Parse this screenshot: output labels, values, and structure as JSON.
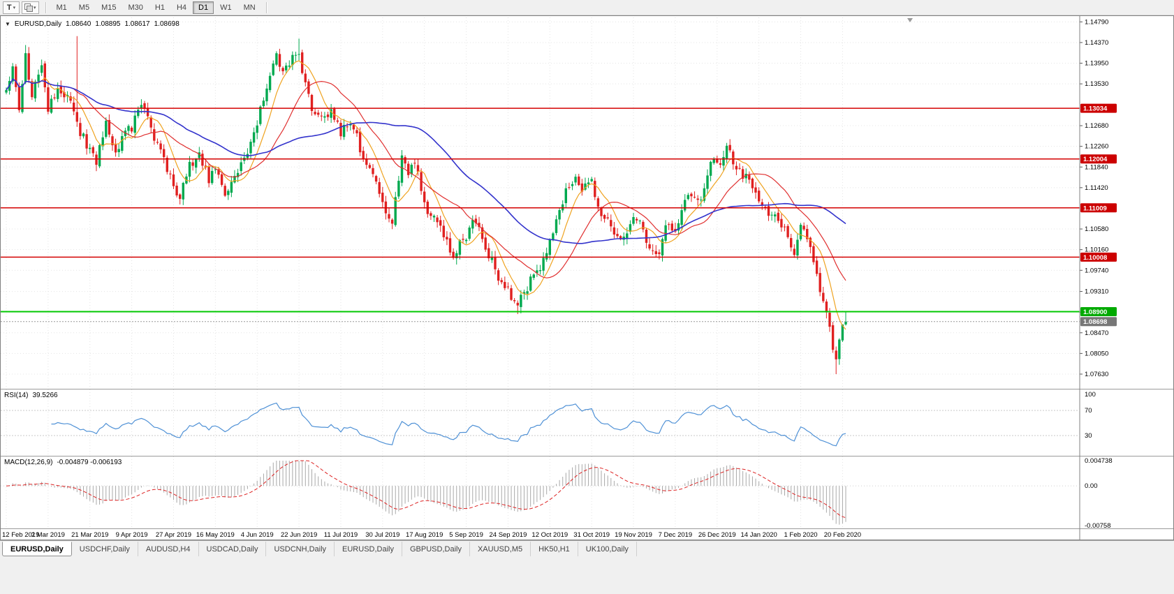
{
  "toolbar": {
    "tools_button_label": "T",
    "dropdown_glyph": "▾",
    "timeframes": [
      "M1",
      "M5",
      "M15",
      "M30",
      "H1",
      "H4",
      "D1",
      "W1",
      "MN"
    ],
    "active_timeframe": "D1"
  },
  "chart_header": {
    "collapse_glyph": "▼",
    "symbol_timeframe": "EURUSD,Daily",
    "open": "1.08640",
    "high": "1.08895",
    "low": "1.08617",
    "close": "1.08698"
  },
  "tabs": {
    "items": [
      "EURUSD,Daily",
      "USDCHF,Daily",
      "AUDUSD,H4",
      "USDCAD,Daily",
      "USDCNH,Daily",
      "EURUSD,Daily",
      "GBPUSD,Daily",
      "XAUUSD,M5",
      "HK50,H1",
      "UK100,Daily"
    ],
    "active_index": 0
  },
  "chart_data": {
    "type": "candlestick",
    "symbol": "EURUSD",
    "timeframe": "Daily",
    "last_candle": {
      "open": "1.08640",
      "high": "1.08895",
      "low": "1.08617",
      "close": "1.08698"
    },
    "num_candles": 262,
    "label_every": 13,
    "x_labels": [
      "12 Feb 2019",
      "2 Mar 2019",
      "21 Mar 2019",
      "9 Apr 2019",
      "27 Apr 2019",
      "16 May 2019",
      "4 Jun 2019",
      "22 Jun 2019",
      "11 Jul 2019",
      "30 Jul 2019",
      "17 Aug 2019",
      "5 Sep 2019",
      "24 Sep 2019",
      "12 Oct 2019",
      "31 Oct 2019",
      "19 Nov 2019",
      "7 Dec 2019",
      "26 Dec 2019",
      "14 Jan 2020",
      "1 Feb 2020",
      "20 Feb 2020"
    ],
    "y_axis": {
      "min": 1.0736,
      "max": 1.1488,
      "ticks": [
        "1.14790",
        "1.14370",
        "1.13950",
        "1.13530",
        "1.12680",
        "1.12260",
        "1.11840",
        "1.11420",
        "1.10580",
        "1.10160",
        "1.09740",
        "1.09310",
        "1.08890",
        "1.08470",
        "1.08050",
        "1.07630"
      ]
    },
    "close_path": [
      [
        0,
        1.1335
      ],
      [
        2,
        1.1385
      ],
      [
        4,
        1.13
      ],
      [
        6,
        1.1405
      ],
      [
        8,
        1.133
      ],
      [
        11,
        1.139
      ],
      [
        13,
        1.13
      ],
      [
        16,
        1.1345
      ],
      [
        19,
        1.132
      ],
      [
        21,
        1.1305
      ],
      [
        23,
        1.1255
      ],
      [
        26,
        1.122
      ],
      [
        28,
        1.1195
      ],
      [
        31,
        1.127
      ],
      [
        34,
        1.1215
      ],
      [
        37,
        1.125
      ],
      [
        39,
        1.1265
      ],
      [
        42,
        1.131
      ],
      [
        45,
        1.126
      ],
      [
        48,
        1.1225
      ],
      [
        52,
        1.114
      ],
      [
        54,
        1.112
      ],
      [
        57,
        1.1185
      ],
      [
        60,
        1.1215
      ],
      [
        63,
        1.116
      ],
      [
        65,
        1.1175
      ],
      [
        68,
        1.1125
      ],
      [
        71,
        1.116
      ],
      [
        74,
        1.12
      ],
      [
        77,
        1.1255
      ],
      [
        79,
        1.13
      ],
      [
        81,
        1.134
      ],
      [
        84,
        1.141
      ],
      [
        86,
        1.137
      ],
      [
        88,
        1.1395
      ],
      [
        91,
        1.142
      ],
      [
        93,
        1.135
      ],
      [
        95,
        1.13
      ],
      [
        98,
        1.1285
      ],
      [
        101,
        1.13
      ],
      [
        104,
        1.1255
      ],
      [
        107,
        1.1275
      ],
      [
        110,
        1.1225
      ],
      [
        113,
        1.118
      ],
      [
        116,
        1.113
      ],
      [
        118,
        1.109
      ],
      [
        120,
        1.1075
      ],
      [
        123,
        1.1205
      ],
      [
        125,
        1.117
      ],
      [
        127,
        1.1195
      ],
      [
        130,
        1.1105
      ],
      [
        133,
        1.1085
      ],
      [
        136,
        1.105
      ],
      [
        139,
        1.1
      ],
      [
        141,
        1.1035
      ],
      [
        143,
        1.103
      ],
      [
        145,
        1.1085
      ],
      [
        148,
        1.1035
      ],
      [
        151,
        1.099
      ],
      [
        154,
        1.0945
      ],
      [
        156,
        1.093
      ],
      [
        159,
        1.0905
      ],
      [
        161,
        1.093
      ],
      [
        164,
        1.0965
      ],
      [
        167,
        1.099
      ],
      [
        169,
        1.1025
      ],
      [
        171,
        1.1075
      ],
      [
        174,
        1.113
      ],
      [
        176,
        1.116
      ],
      [
        179,
        1.114
      ],
      [
        182,
        1.115
      ],
      [
        184,
        1.1105
      ],
      [
        187,
        1.107
      ],
      [
        190,
        1.104
      ],
      [
        193,
        1.1055
      ],
      [
        195,
        1.1075
      ],
      [
        198,
        1.106
      ],
      [
        200,
        1.1015
      ],
      [
        203,
        1.1
      ],
      [
        205,
        1.106
      ],
      [
        208,
        1.1055
      ],
      [
        210,
        1.1105
      ],
      [
        213,
        1.113
      ],
      [
        215,
        1.111
      ],
      [
        218,
        1.1165
      ],
      [
        220,
        1.1205
      ],
      [
        222,
        1.119
      ],
      [
        224,
        1.1235
      ],
      [
        226,
        1.12
      ],
      [
        229,
        1.117
      ],
      [
        232,
        1.114
      ],
      [
        234,
        1.1125
      ],
      [
        237,
        1.1095
      ],
      [
        240,
        1.1085
      ],
      [
        243,
        1.1045
      ],
      [
        245,
        1.1015
      ],
      [
        247,
        1.1075
      ],
      [
        249,
        1.104
      ],
      [
        251,
        1.099
      ],
      [
        253,
        1.0935
      ],
      [
        255,
        1.088
      ],
      [
        257,
        1.082
      ],
      [
        258,
        1.079
      ],
      [
        259,
        1.0835
      ],
      [
        260,
        1.085
      ],
      [
        261,
        1.087
      ]
    ],
    "noise": {
      "close": 0.0011,
      "wick": 0.0013,
      "gap": 0.0004,
      "seed": 1337
    },
    "overrides": {
      "6": {
        "h": 1.1432
      },
      "22": {
        "h": 1.145
      },
      "91": {
        "h": 1.1445
      },
      "159": {
        "l": 1.0885
      },
      "258": {
        "l": 1.0763
      },
      "260": {
        "c": 1.0864
      },
      "261": {
        "o": 1.0864,
        "h": 1.08895,
        "l": 1.08617,
        "c": 1.08698
      }
    },
    "moving_averages": [
      {
        "period": 8,
        "color": "#efa320",
        "width": 1.2
      },
      {
        "period": 20,
        "color": "#e03030",
        "width": 1.2
      },
      {
        "period": 50,
        "color": "#3333cc",
        "width": 1.6
      }
    ],
    "levels": [
      {
        "price": "1.13034",
        "color": "#d40000",
        "width": 1.5,
        "style": "solid",
        "badge_bg": "#cc0000"
      },
      {
        "price": "1.12004",
        "color": "#d40000",
        "width": 1.5,
        "style": "solid",
        "badge_bg": "#cc0000"
      },
      {
        "price": "1.11009",
        "color": "#d40000",
        "width": 1.5,
        "style": "solid",
        "badge_bg": "#cc0000"
      },
      {
        "price": "1.10008",
        "color": "#d40000",
        "width": 1.5,
        "style": "solid",
        "badge_bg": "#cc0000"
      },
      {
        "price": "1.08900",
        "color": "#00c800",
        "width": 2,
        "style": "solid",
        "badge_bg": "#00aa00"
      },
      {
        "price": "1.08698",
        "color": "#999999",
        "width": 1,
        "style": "dotted",
        "badge_bg": "#777777"
      }
    ],
    "colors": {
      "up": "#00a94f",
      "down": "#e02020",
      "grid": "#e4e4e4",
      "axis_text": "#000000"
    },
    "rsi": {
      "period": 14,
      "label": "RSI(14)",
      "value": "39.5266",
      "color": "#4f91d6",
      "levels": [
        "100",
        "70",
        "30"
      ]
    },
    "macd": {
      "label": "MACD(12,26,9)",
      "values": "-0.004879 -0.006193",
      "hist_color": "#a8a8a8",
      "signal_color": "#dd2222",
      "y_ticks": [
        "0.004738",
        "0.00",
        "-0.00758"
      ],
      "max": 0.004738,
      "min": -0.00758
    }
  }
}
